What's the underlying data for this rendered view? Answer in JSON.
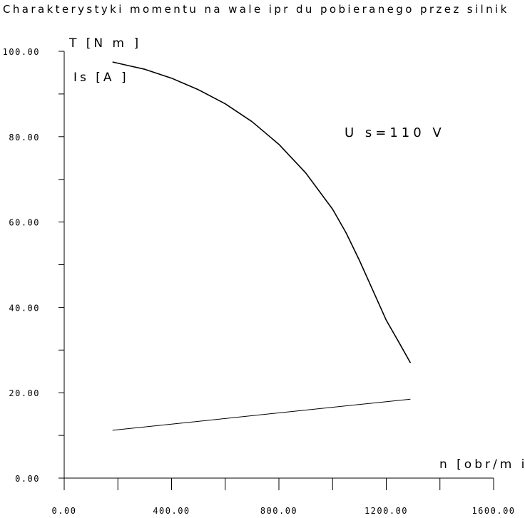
{
  "chart_data": {
    "type": "line",
    "title": "Charakterystyki momentu na wale ipr du pobieranego przez silnik",
    "xlabel": "n [obr/m in]",
    "ylabels": [
      "T [N m ]",
      "Is [A ]"
    ],
    "annotation": "U s=110 V",
    "xlim": [
      0,
      1600
    ],
    "ylim": [
      0,
      100
    ],
    "x_major_ticks": [
      0,
      400,
      800,
      1200,
      1600
    ],
    "x_minor_step": 200,
    "y_major_ticks": [
      0,
      20,
      40,
      60,
      80,
      100
    ],
    "y_minor_step": 10,
    "x_tick_labels": [
      "0.00",
      "400.00",
      "800.00",
      "1200.00",
      "1600.00"
    ],
    "y_tick_labels": [
      "0.00",
      "20.00",
      "40.00",
      "60.00",
      "80.00",
      "100.00"
    ],
    "grid": false,
    "series": [
      {
        "x": [
          180,
          250,
          300,
          400,
          500,
          600,
          700,
          800,
          900,
          1000,
          1050,
          1100,
          1150,
          1200,
          1250,
          1290
        ],
        "values": [
          97.5,
          96.5,
          95.8,
          93.7,
          91.0,
          87.7,
          83.5,
          78.2,
          71.5,
          63.0,
          57.5,
          51.0,
          44.0,
          37.0,
          31.5,
          27.0
        ],
        "color": "#000000"
      },
      {
        "x": [
          180,
          1290
        ],
        "values": [
          11.2,
          18.5
        ],
        "color": "#000000"
      }
    ]
  }
}
